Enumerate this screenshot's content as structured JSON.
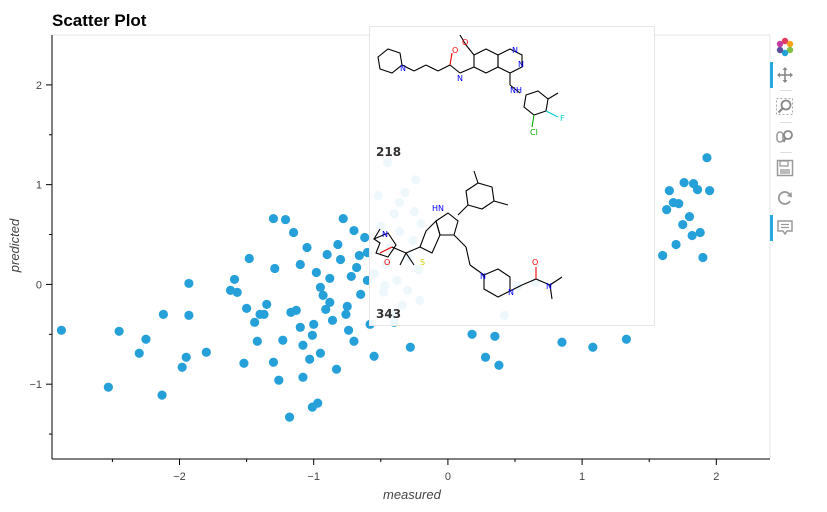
{
  "chart_data": {
    "type": "scatter",
    "title": "Scatter Plot",
    "xlabel": "measured",
    "ylabel": "predicted",
    "xlim": [
      -2.95,
      2.4
    ],
    "ylim": [
      -1.75,
      2.5
    ],
    "xticks": [
      -2,
      -1,
      0,
      1,
      2
    ],
    "yticks": [
      -1,
      0,
      1,
      2
    ],
    "xtick_labels": [
      "−2",
      "−1",
      "0",
      "1",
      "2"
    ],
    "ytick_labels": [
      "−1",
      "0",
      "1",
      "2"
    ],
    "grid": false,
    "marker_color": "#26a0d9",
    "points": [
      [
        -2.88,
        -0.46
      ],
      [
        -2.53,
        -1.03
      ],
      [
        -2.45,
        -0.47
      ],
      [
        -2.3,
        -0.69
      ],
      [
        -2.25,
        -0.55
      ],
      [
        -2.12,
        -0.3
      ],
      [
        -2.13,
        -1.11
      ],
      [
        -1.98,
        -0.83
      ],
      [
        -1.95,
        -0.73
      ],
      [
        -1.93,
        0.01
      ],
      [
        -1.93,
        -0.31
      ],
      [
        -1.8,
        -0.68
      ],
      [
        -1.62,
        -0.06
      ],
      [
        -1.57,
        -0.08
      ],
      [
        -1.52,
        -0.79
      ],
      [
        -1.5,
        -0.24
      ],
      [
        -1.48,
        0.26
      ],
      [
        -1.42,
        -0.57
      ],
      [
        -1.4,
        -0.3
      ],
      [
        -1.37,
        -0.3
      ],
      [
        -1.35,
        -0.2
      ],
      [
        -1.3,
        -0.78
      ],
      [
        -1.29,
        0.16
      ],
      [
        -1.26,
        -0.96
      ],
      [
        -1.23,
        -0.56
      ],
      [
        -1.21,
        0.65
      ],
      [
        -1.15,
        0.52
      ],
      [
        -1.13,
        -0.26
      ],
      [
        -1.1,
        -0.43
      ],
      [
        -1.08,
        -0.61
      ],
      [
        -1.08,
        -0.93
      ],
      [
        -1.05,
        0.37
      ],
      [
        -1.03,
        -0.75
      ],
      [
        -1.01,
        -0.51
      ],
      [
        -0.98,
        0.12
      ],
      [
        -0.95,
        -0.69
      ],
      [
        -0.93,
        -0.11
      ],
      [
        -0.9,
        0.3
      ],
      [
        -0.88,
        0.06
      ],
      [
        -0.86,
        -0.36
      ],
      [
        -0.83,
        -0.85
      ],
      [
        -0.8,
        0.25
      ],
      [
        -0.78,
        0.66
      ],
      [
        -0.75,
        -0.22
      ],
      [
        -0.72,
        0.08
      ],
      [
        -0.7,
        -0.57
      ],
      [
        -0.68,
        0.17
      ],
      [
        -0.65,
        -0.1
      ],
      [
        -0.62,
        0.47
      ],
      [
        -0.6,
        0.32
      ],
      [
        -0.58,
        -0.4
      ],
      [
        -0.55,
        0.11
      ],
      [
        -0.52,
        0.89
      ],
      [
        -0.5,
        0.58
      ],
      [
        -0.48,
        -0.08
      ],
      [
        -0.46,
        0.2
      ],
      [
        -0.45,
        1.22
      ],
      [
        -0.43,
        0.37
      ],
      [
        -0.42,
        -0.29
      ],
      [
        -0.4,
        0.71
      ],
      [
        -0.38,
        0.04
      ],
      [
        -0.36,
        0.53
      ],
      [
        -0.34,
        -0.21
      ],
      [
        -0.32,
        0.92
      ],
      [
        -0.3,
        0.27
      ],
      [
        -0.28,
        -0.63
      ],
      [
        -0.26,
        0.44
      ],
      [
        -0.24,
        1.05
      ],
      [
        -0.22,
        0.15
      ],
      [
        -0.2,
        0.61
      ],
      [
        -1.17,
        -0.28
      ],
      [
        -1.1,
        0.2
      ],
      [
        -1.0,
        -0.4
      ],
      [
        -0.95,
        -0.03
      ],
      [
        -0.88,
        -0.18
      ],
      [
        -0.82,
        0.4
      ],
      [
        -0.76,
        -0.3
      ],
      [
        -0.7,
        0.54
      ],
      [
        -0.66,
        0.29
      ],
      [
        -0.6,
        0.04
      ],
      [
        -1.3,
        0.66
      ],
      [
        -1.44,
        -0.38
      ],
      [
        -1.59,
        0.05
      ],
      [
        -1.01,
        -1.23
      ],
      [
        -1.18,
        -1.33
      ],
      [
        -0.97,
        -1.19
      ],
      [
        -0.91,
        -0.25
      ],
      [
        -0.74,
        -0.46
      ],
      [
        -0.55,
        -0.72
      ],
      [
        -0.47,
        -0.01
      ],
      [
        -0.4,
        -0.38
      ],
      [
        -0.36,
        0.82
      ],
      [
        -0.3,
        -0.06
      ],
      [
        -0.25,
        0.73
      ],
      [
        -0.21,
        -0.16
      ],
      [
        0.18,
        -0.5
      ],
      [
        0.28,
        -0.73
      ],
      [
        0.35,
        -0.52
      ],
      [
        0.38,
        -0.81
      ],
      [
        0.42,
        -0.31
      ],
      [
        0.52,
        -0.02
      ],
      [
        0.65,
        0.02
      ],
      [
        0.85,
        -0.58
      ],
      [
        1.08,
        -0.63
      ],
      [
        1.33,
        -0.55
      ],
      [
        1.6,
        0.29
      ],
      [
        1.65,
        0.94
      ],
      [
        1.7,
        0.4
      ],
      [
        1.75,
        0.6
      ],
      [
        1.8,
        0.68
      ],
      [
        1.82,
        0.49
      ],
      [
        1.86,
        0.95
      ],
      [
        1.88,
        0.52
      ],
      [
        1.9,
        0.27
      ],
      [
        1.93,
        1.27
      ],
      [
        1.95,
        0.94
      ],
      [
        1.76,
        1.02
      ],
      [
        1.68,
        0.82
      ],
      [
        1.72,
        0.81
      ],
      [
        1.63,
        0.75
      ],
      [
        1.83,
        1.01
      ]
    ]
  },
  "tooltip": {
    "items": [
      {
        "label": "218"
      },
      {
        "label": "343"
      }
    ]
  },
  "toolbar": {
    "tools": [
      {
        "name": "bokeh-logo",
        "active": false
      },
      {
        "name": "pan",
        "active": true
      },
      {
        "name": "box-zoom",
        "active": false
      },
      {
        "name": "wheel-zoom",
        "active": false
      },
      {
        "name": "save",
        "active": false
      },
      {
        "name": "reset",
        "active": false
      },
      {
        "name": "hover",
        "active": true
      }
    ]
  },
  "colors": {
    "marker": "#26a0d9",
    "toolbar_active": "#26aae1"
  }
}
